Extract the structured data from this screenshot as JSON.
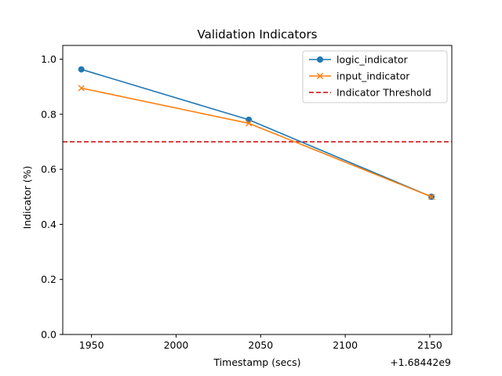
{
  "chart_data": {
    "type": "line",
    "title": "Validation Indicators",
    "xlabel": "Timestamp (secs)",
    "ylabel": "Indicator (%)",
    "x_offset_label": "+1.68442e9",
    "xlim": [
      1933,
      2163
    ],
    "ylim": [
      0,
      1.05
    ],
    "x_ticks": [
      {
        "value": 1950,
        "label": "1950"
      },
      {
        "value": 2000,
        "label": "2000"
      },
      {
        "value": 2050,
        "label": "2050"
      },
      {
        "value": 2100,
        "label": "2100"
      },
      {
        "value": 2150,
        "label": "2150"
      }
    ],
    "y_ticks": [
      {
        "value": 0.0,
        "label": "0.0"
      },
      {
        "value": 0.2,
        "label": "0.2"
      },
      {
        "value": 0.4,
        "label": "0.4"
      },
      {
        "value": 0.6,
        "label": "0.6"
      },
      {
        "value": 0.8,
        "label": "0.8"
      },
      {
        "value": 1.0,
        "label": "1.0"
      }
    ],
    "grid": false,
    "legend_position": "top-right",
    "series": [
      {
        "name": "logic_indicator",
        "marker": "circle",
        "color": "#1f77b4",
        "x": [
          1944,
          2043,
          2151
        ],
        "y": [
          0.963,
          0.78,
          0.5
        ]
      },
      {
        "name": "input_indicator",
        "marker": "x",
        "color": "#ff7f0e",
        "x": [
          1944,
          2043,
          2151
        ],
        "y": [
          0.895,
          0.767,
          0.5
        ]
      }
    ],
    "threshold": {
      "name": "Indicator Threshold",
      "value": 0.7,
      "color": "#d62728",
      "style": "dashed"
    }
  }
}
